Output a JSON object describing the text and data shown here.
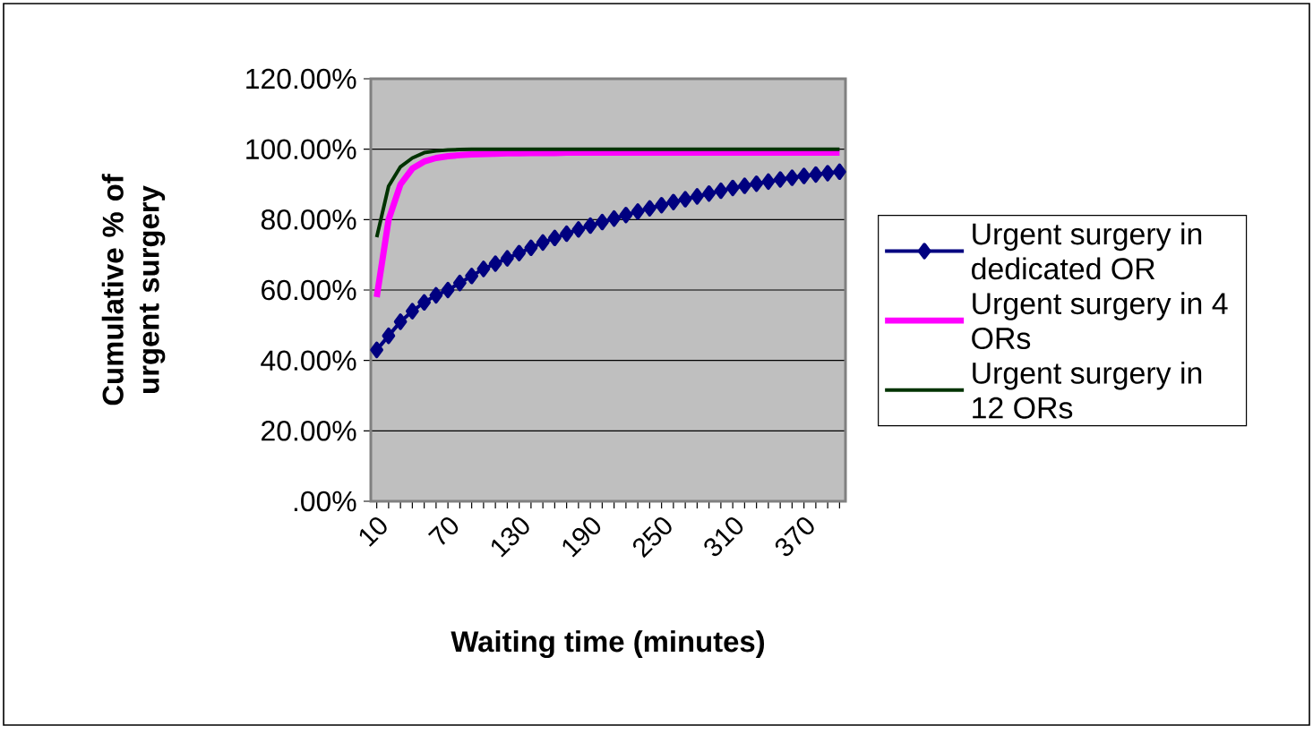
{
  "chart_data": {
    "type": "line",
    "xlabel": "Waiting time (minutes)",
    "ylabel": "Cumulative % of urgent surgery",
    "categories": [
      "10",
      null,
      null,
      null,
      null,
      null,
      "70",
      null,
      null,
      null,
      null,
      null,
      "130",
      null,
      null,
      null,
      null,
      null,
      "190",
      null,
      null,
      null,
      null,
      null,
      "250",
      null,
      null,
      null,
      null,
      null,
      "310",
      null,
      null,
      null,
      null,
      null,
      "370",
      null,
      null,
      null
    ],
    "ylim": [
      0,
      120
    ],
    "yticks": [
      {
        "value": 0,
        "label": ".00%"
      },
      {
        "value": 20,
        "label": "20.00%"
      },
      {
        "value": 40,
        "label": "40.00%"
      },
      {
        "value": 60,
        "label": "60.00%"
      },
      {
        "value": 80,
        "label": "80.00%"
      },
      {
        "value": 100,
        "label": "100.00%"
      },
      {
        "value": 120,
        "label": "120.00%"
      }
    ],
    "grid": "y",
    "legend": "right",
    "series": [
      {
        "name": "Urgent surgery in dedicated OR",
        "color": "#000080",
        "marker": "diamond",
        "values": [
          43,
          47,
          51,
          54,
          56.5,
          58.5,
          60,
          62,
          64,
          66,
          67.5,
          69,
          70.5,
          72,
          73.5,
          74.8,
          76,
          77.2,
          78.3,
          79.3,
          80.3,
          81.3,
          82.3,
          83.2,
          84.1,
          85,
          85.8,
          86.6,
          87.4,
          88.2,
          89,
          89.6,
          90.2,
          90.8,
          91.4,
          91.9,
          92.4,
          92.8,
          93.2,
          93.6
        ]
      },
      {
        "name": "Urgent surgery in 4 ORs",
        "color": "#ff00ff",
        "marker": "none",
        "values": [
          58,
          80,
          90,
          94.5,
          96.5,
          97.5,
          98,
          98.3,
          98.5,
          98.6,
          98.7,
          98.8,
          98.8,
          98.9,
          98.9,
          98.9,
          99,
          99,
          99,
          99,
          99,
          99,
          99,
          99,
          99,
          99,
          99,
          99,
          99,
          99,
          99,
          99,
          99,
          99,
          99,
          99,
          99,
          99,
          99,
          99
        ]
      },
      {
        "name": "Urgent surgery in 12 ORs",
        "color": "#003300",
        "marker": "none",
        "values": [
          75,
          89.5,
          95,
          97.5,
          99,
          99.5,
          99.8,
          99.9,
          100,
          100,
          100,
          100,
          100,
          100,
          100,
          100,
          100,
          100,
          100,
          100,
          100,
          100,
          100,
          100,
          100,
          100,
          100,
          100,
          100,
          100,
          100,
          100,
          100,
          100,
          100,
          100,
          100,
          100,
          100,
          100
        ]
      }
    ]
  }
}
